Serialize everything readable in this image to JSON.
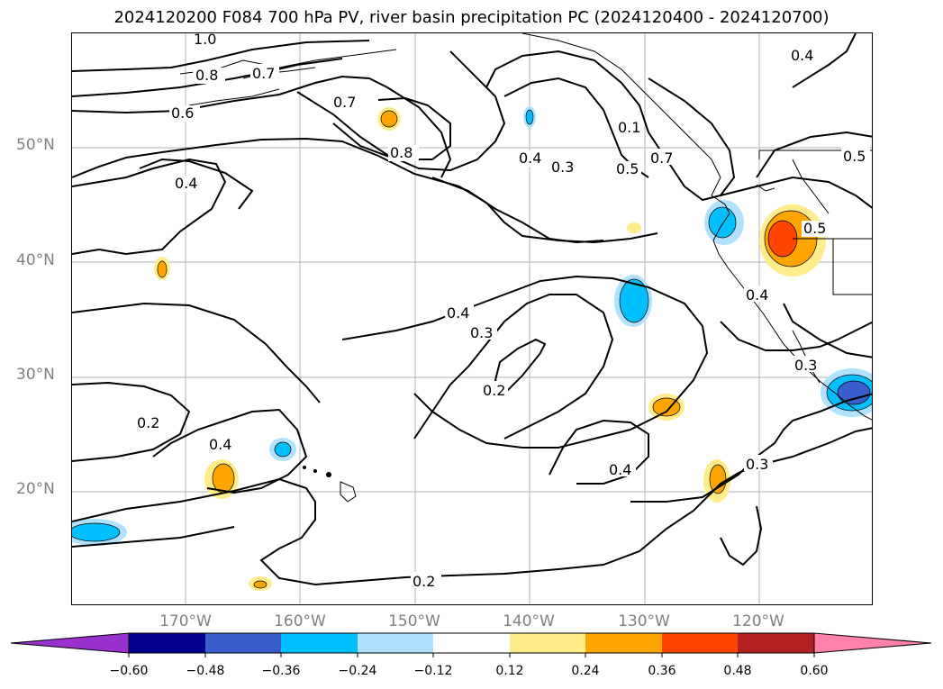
{
  "title": "2024120200 F084 700 hPa PV, river basin precipitation PC (2024120400 - 2024120700)",
  "lat_labels": [
    "50°N",
    "40°N",
    "30°N",
    "20°N"
  ],
  "lon_labels": [
    "170°W",
    "160°W",
    "150°W",
    "140°W",
    "130°W",
    "120°W"
  ],
  "colorbar": {
    "ticks": [
      "−0.60",
      "−0.48",
      "−0.36",
      "−0.24",
      "−0.12",
      "0.12",
      "0.24",
      "0.36",
      "0.48",
      "0.60"
    ],
    "colors": [
      "#9932cc",
      "#00008b",
      "#3a5fcd",
      "#00bfff",
      "#b0e2ff",
      "#ffffff",
      "#ffec8b",
      "#ffa500",
      "#ff4500",
      "#b22222",
      "#ff82ab"
    ]
  },
  "contour_labels": [
    "1.0",
    "0.8",
    "0.7",
    "0.6",
    "0.7",
    "0.8",
    "0.4",
    "0.4",
    "0.3",
    "0.1",
    "0.5",
    "0.7",
    "0.4",
    "0.5",
    "0.5",
    "0.4",
    "0.4",
    "0.3",
    "0.2",
    "0.3",
    "0.2",
    "0.4",
    "0.4",
    "0.3",
    "0.2"
  ],
  "map": {
    "extent_lon": [
      -180,
      -110
    ],
    "extent_lat": [
      10,
      60
    ],
    "grid_lons": [
      -170,
      -160,
      -150,
      -140,
      -130,
      -120
    ],
    "grid_lats": [
      20,
      30,
      40,
      50
    ]
  }
}
